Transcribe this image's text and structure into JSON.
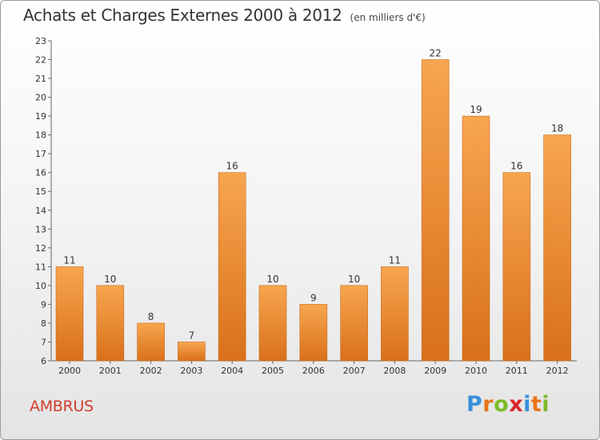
{
  "title": "Achats et Charges Externes 2000 à 2012",
  "subtitle": "(en milliers d'€)",
  "commune": "AMBRUS",
  "logo": {
    "letters": [
      "P",
      "r",
      "o",
      "x",
      "i",
      "t",
      "i"
    ],
    "colors": [
      "#3a8fd9",
      "#e8751a",
      "#7cbb2a",
      "#d9262c",
      "#3a8fd9",
      "#e8751a",
      "#7cbb2a"
    ]
  },
  "chart_data": {
    "type": "bar",
    "categories": [
      "2000",
      "2001",
      "2002",
      "2003",
      "2004",
      "2005",
      "2006",
      "2007",
      "2008",
      "2009",
      "2010",
      "2011",
      "2012"
    ],
    "values": [
      11,
      10,
      8,
      7,
      16,
      10,
      9,
      10,
      11,
      22,
      19,
      16,
      18
    ],
    "data_labels": [
      "11",
      "10",
      "8",
      "7",
      "16",
      "10",
      "9",
      "10",
      "11",
      "22",
      "19",
      "16",
      "18"
    ],
    "ylim": [
      6,
      23
    ],
    "yticks": [
      6,
      7,
      8,
      9,
      10,
      11,
      12,
      13,
      14,
      15,
      16,
      17,
      18,
      19,
      20,
      21,
      22,
      23
    ],
    "grid": false,
    "bar_color": "#f08c30"
  }
}
